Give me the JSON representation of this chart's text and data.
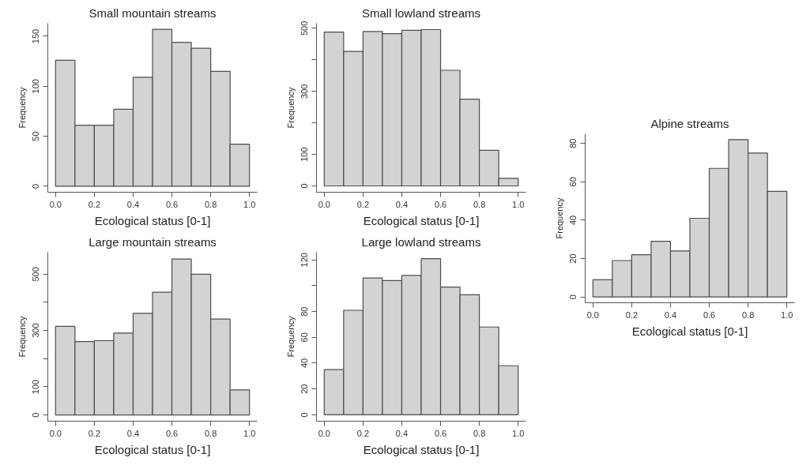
{
  "chart_data": [
    {
      "type": "histogram",
      "title": "Small mountain streams",
      "xlabel": "Ecological status [0-1]",
      "ylabel": "Frequency",
      "color": "#d3d3d3",
      "grid": false,
      "bins": [
        0,
        0.1,
        0.2,
        0.3,
        0.4,
        0.5,
        0.6,
        0.7,
        0.8,
        0.9,
        1.0
      ],
      "values": [
        126,
        61,
        61,
        77,
        109,
        157,
        144,
        138,
        115,
        42
      ],
      "xlim": [
        -0.04,
        1.04
      ],
      "xticks": [
        {
          "value": 0,
          "label": "0.0"
        },
        {
          "value": 0.2,
          "label": "0.2"
        },
        {
          "value": 0.4,
          "label": "0.4"
        },
        {
          "value": 0.6,
          "label": "0.6"
        },
        {
          "value": 0.8,
          "label": "0.8"
        },
        {
          "value": 1,
          "label": "1.0"
        }
      ],
      "ylim": [
        -6,
        163
      ],
      "yticks": [
        0,
        50,
        100,
        150
      ]
    },
    {
      "type": "histogram",
      "title": "Small lowland streams",
      "xlabel": "Ecological status [0-1]",
      "ylabel": "Frequency",
      "color": "#d3d3d3",
      "grid": false,
      "bins": [
        0,
        0.1,
        0.2,
        0.3,
        0.4,
        0.5,
        0.6,
        0.7,
        0.8,
        0.9,
        1.0
      ],
      "values": [
        488,
        427,
        490,
        483,
        494,
        496,
        367,
        275,
        113,
        24
      ],
      "xlim": [
        -0.04,
        1.04
      ],
      "xticks": [
        {
          "value": 0,
          "label": "0.0"
        },
        {
          "value": 0.2,
          "label": "0.2"
        },
        {
          "value": 0.4,
          "label": "0.4"
        },
        {
          "value": 0.6,
          "label": "0.6"
        },
        {
          "value": 0.8,
          "label": "0.8"
        },
        {
          "value": 1,
          "label": "1.0"
        }
      ],
      "ylim": [
        -20,
        516
      ],
      "yticks": [
        0,
        100,
        {
          "value": 200,
          "label": null
        },
        300,
        {
          "value": 400,
          "label": null
        },
        500
      ]
    },
    {
      "type": "histogram",
      "title": "Large mountain streams",
      "xlabel": "Ecological status [0-1]",
      "ylabel": "Frequency",
      "color": "#d3d3d3",
      "grid": false,
      "bins": [
        0,
        0.1,
        0.2,
        0.3,
        0.4,
        0.5,
        0.6,
        0.7,
        0.8,
        0.9,
        1.0
      ],
      "values": [
        315,
        261,
        264,
        291,
        361,
        436,
        554,
        500,
        341,
        89
      ],
      "xlim": [
        -0.04,
        1.04
      ],
      "xticks": [
        {
          "value": 0,
          "label": "0.0"
        },
        {
          "value": 0.2,
          "label": "0.2"
        },
        {
          "value": 0.4,
          "label": "0.4"
        },
        {
          "value": 0.6,
          "label": "0.6"
        },
        {
          "value": 0.8,
          "label": "0.8"
        },
        {
          "value": 1,
          "label": "1.0"
        }
      ],
      "ylim": [
        -22,
        578
      ],
      "yticks": [
        0,
        100,
        {
          "value": 200,
          "label": null
        },
        300,
        {
          "value": 400,
          "label": null
        },
        500
      ]
    },
    {
      "type": "histogram",
      "title": "Large lowland streams",
      "xlabel": "Ecological status [0-1]",
      "ylabel": "Frequency",
      "color": "#d3d3d3",
      "grid": false,
      "bins": [
        0,
        0.1,
        0.2,
        0.3,
        0.4,
        0.5,
        0.6,
        0.7,
        0.8,
        0.9,
        1.0
      ],
      "values": [
        35,
        81,
        106,
        104,
        108,
        121,
        99,
        93,
        68,
        38
      ],
      "xlim": [
        -0.04,
        1.04
      ],
      "xticks": [
        {
          "value": 0,
          "label": "0.0"
        },
        {
          "value": 0.2,
          "label": "0.2"
        },
        {
          "value": 0.4,
          "label": "0.4"
        },
        {
          "value": 0.6,
          "label": "0.6"
        },
        {
          "value": 0.8,
          "label": "0.8"
        },
        {
          "value": 1,
          "label": "1.0"
        }
      ],
      "ylim": [
        -5,
        126
      ],
      "yticks": [
        0,
        20,
        40,
        60,
        80,
        {
          "value": 100,
          "label": null
        },
        120
      ]
    },
    {
      "type": "histogram",
      "title": "Alpine streams",
      "xlabel": "Ecological status [0-1]",
      "ylabel": "Frequency",
      "color": "#d3d3d3",
      "grid": false,
      "bins": [
        0,
        0.1,
        0.2,
        0.3,
        0.4,
        0.5,
        0.6,
        0.7,
        0.8,
        0.9,
        1.0
      ],
      "values": [
        9,
        19,
        22,
        29,
        24,
        41,
        67,
        82,
        75,
        55
      ],
      "xlim": [
        -0.04,
        1.04
      ],
      "xticks": [
        {
          "value": 0,
          "label": "0.0"
        },
        {
          "value": 0.2,
          "label": "0.2"
        },
        {
          "value": 0.4,
          "label": "0.4"
        },
        {
          "value": 0.6,
          "label": "0.6"
        },
        {
          "value": 0.8,
          "label": "0.8"
        },
        {
          "value": 1,
          "label": "1.0"
        }
      ],
      "ylim": [
        -3,
        85
      ],
      "yticks": [
        0,
        20,
        40,
        60,
        80
      ]
    }
  ]
}
